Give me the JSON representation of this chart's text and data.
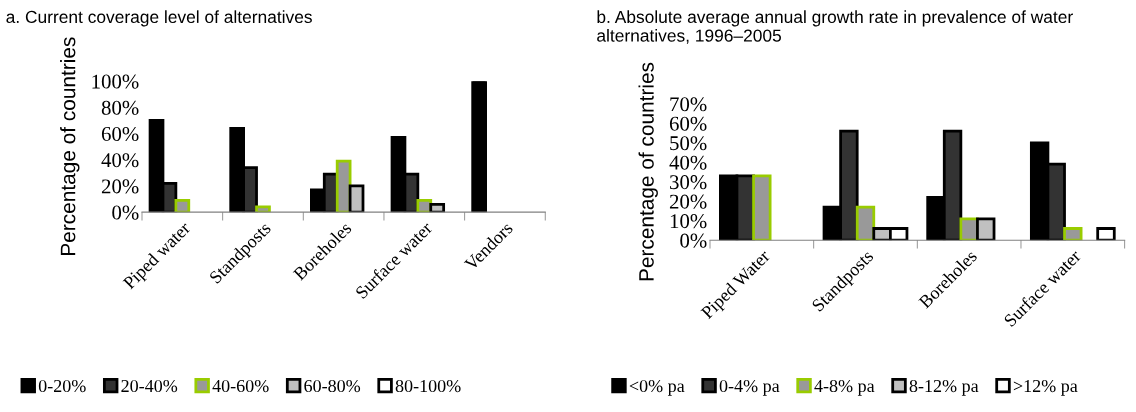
{
  "chart_data": [
    {
      "type": "bar",
      "title": "a. Current coverage level of alternatives",
      "ylabel": "Percentage of countries",
      "categories": [
        "Piped water",
        "Standposts",
        "Boreholes",
        "Surface water",
        "Vendors"
      ],
      "ylim": [
        0,
        100
      ],
      "yticks": [
        {
          "value": 0,
          "label": "0%"
        },
        {
          "value": 20,
          "label": "20%"
        },
        {
          "value": 40,
          "label": "40%"
        },
        {
          "value": 60,
          "label": "60%"
        },
        {
          "value": 80,
          "label": "80%"
        },
        {
          "value": 100,
          "label": "100%"
        }
      ],
      "grid": false,
      "legend": "bottom",
      "series": [
        {
          "name": "0-20%",
          "color": "#000000",
          "values": [
            70,
            64,
            17,
            57,
            100
          ]
        },
        {
          "name": "20-40%",
          "color": "#333333",
          "values": [
            22,
            34,
            29,
            29,
            null
          ]
        },
        {
          "name": "40-60%",
          "color": "#999999",
          "values": [
            9,
            4,
            39,
            9,
            null
          ]
        },
        {
          "name": "60-80%",
          "color": "#c0c0c0",
          "values": [
            null,
            null,
            20,
            6,
            null
          ]
        },
        {
          "name": "80-100%",
          "color": "#ffffff",
          "values": [
            null,
            null,
            null,
            null,
            null
          ]
        }
      ]
    },
    {
      "type": "bar",
      "title": "b. Absolute average annual growth rate in prevalence of water alternatives, 1996–2005",
      "ylabel": "Percentage of countries",
      "categories": [
        "Piped Water",
        "Standposts",
        "Boreholes",
        "Surface water"
      ],
      "ylim": [
        0,
        70
      ],
      "yticks": [
        {
          "value": 0,
          "label": "0%"
        },
        {
          "value": 10,
          "label": "10%"
        },
        {
          "value": 20,
          "label": "20%"
        },
        {
          "value": 30,
          "label": "30%"
        },
        {
          "value": 40,
          "label": "40%"
        },
        {
          "value": 50,
          "label": "50%"
        },
        {
          "value": 60,
          "label": "60%"
        },
        {
          "value": 70,
          "label": "70%"
        }
      ],
      "grid": false,
      "legend": "bottom",
      "series": [
        {
          "name": "<0% pa",
          "color": "#000000",
          "values": [
            33,
            17,
            22,
            50
          ]
        },
        {
          "name": "0-4% pa",
          "color": "#333333",
          "values": [
            33,
            56,
            56,
            39
          ]
        },
        {
          "name": "4-8% pa",
          "color": "#999999",
          "values": [
            33,
            17,
            11,
            6
          ]
        },
        {
          "name": "8-12% pa",
          "color": "#c0c0c0",
          "values": [
            null,
            6,
            11,
            null
          ]
        },
        {
          "name": ">12% pa",
          "color": "#ffffff",
          "values": [
            null,
            6,
            null,
            6
          ]
        }
      ]
    }
  ]
}
